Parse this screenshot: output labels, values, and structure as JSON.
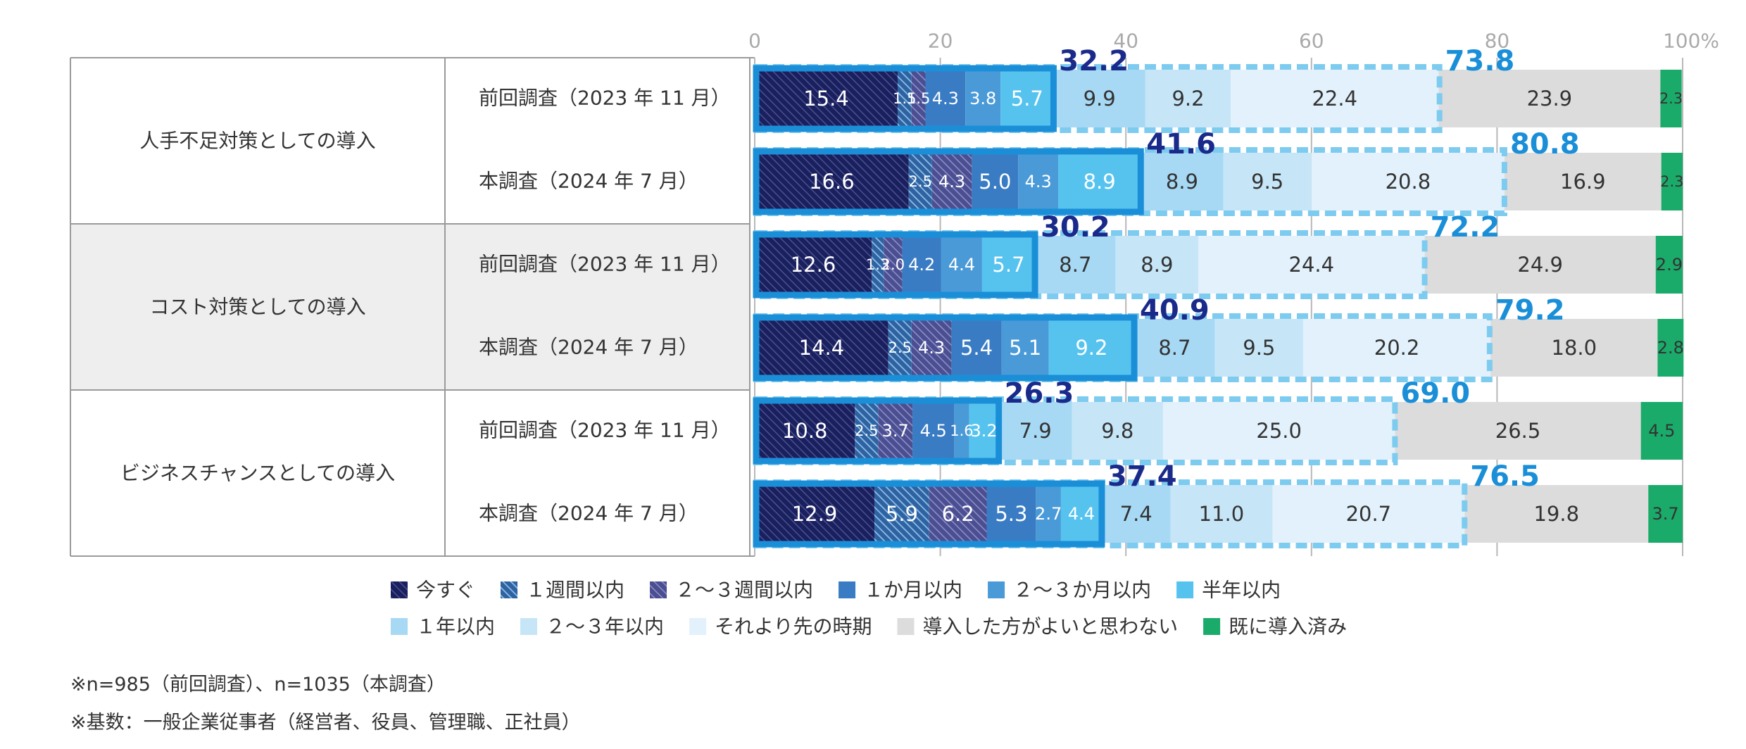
{
  "chart_data": {
    "type": "bar",
    "orientation": "horizontal",
    "stacked": true,
    "xlim": [
      0,
      100
    ],
    "x_ticks": [
      "0",
      "20",
      "40",
      "60",
      "80",
      "100%"
    ],
    "grid": true,
    "legend_position": "bottom",
    "groups": [
      {
        "label": "人手不足対策としての導入",
        "rows": [
          {
            "label": "前回調査（2023 年 11 月）",
            "values": [
              "15.4",
              "1.5",
              "1.5",
              "4.3",
              "3.8",
              "5.7",
              "9.9",
              "9.2",
              "22.4",
              "23.9",
              "2.3"
            ],
            "within_half_year": "32.2",
            "cumulative": "73.8"
          },
          {
            "label": "本調査（2024 年 7 月）",
            "values": [
              "16.6",
              "2.5",
              "4.3",
              "5.0",
              "4.3",
              "8.9",
              "8.9",
              "9.5",
              "20.8",
              "16.9",
              "2.3"
            ],
            "within_half_year": "41.6",
            "cumulative": "80.8"
          }
        ]
      },
      {
        "label": "コスト対策としての導入",
        "rows": [
          {
            "label": "前回調査（2023 年 11 月）",
            "values": [
              "12.6",
              "1.3",
              "2.0",
              "4.2",
              "4.4",
              "5.7",
              "8.7",
              "8.9",
              "24.4",
              "24.9",
              "2.9"
            ],
            "within_half_year": "30.2",
            "cumulative": "72.2"
          },
          {
            "label": "本調査（2024 年 7 月）",
            "values": [
              "14.4",
              "2.5",
              "4.3",
              "5.4",
              "5.1",
              "9.2",
              "8.7",
              "9.5",
              "20.2",
              "18.0",
              "2.8"
            ],
            "within_half_year": "40.9",
            "cumulative": "79.2"
          }
        ]
      },
      {
        "label": "ビジネスチャンスとしての導入",
        "rows": [
          {
            "label": "前回調査（2023 年 11 月）",
            "values": [
              "10.8",
              "2.5",
              "3.7",
              "4.5",
              "1.6",
              "3.2",
              "7.9",
              "9.8",
              "25.0",
              "26.5",
              "4.5"
            ],
            "within_half_year": "26.3",
            "cumulative": "69.0"
          },
          {
            "label": "本調査（2024 年 7 月）",
            "values": [
              "12.9",
              "5.9",
              "6.2",
              "5.3",
              "2.7",
              "4.4",
              "7.4",
              "11.0",
              "20.7",
              "19.8",
              "3.7"
            ],
            "within_half_year": "37.4",
            "cumulative": "76.5"
          }
        ]
      }
    ],
    "series": [
      {
        "name": "今すぐ",
        "color": "#1a1f5e",
        "pattern": "hatch-dark",
        "label_color": "#ffffff"
      },
      {
        "name": "１週間以内",
        "color": "#5a8fc4",
        "pattern": "hatch-light",
        "label_color": "#ffffff"
      },
      {
        "name": "２～３週間以内",
        "color": "#5b5fa0",
        "pattern": "hatch-mid",
        "label_color": "#ffffff"
      },
      {
        "name": "１か月以内",
        "color": "#3a7cc4",
        "pattern": "none",
        "label_color": "#ffffff"
      },
      {
        "name": "２～３か月以内",
        "color": "#4a9ad8",
        "pattern": "none",
        "label_color": "#ffffff"
      },
      {
        "name": "半年以内",
        "color": "#56c3ef",
        "pattern": "none",
        "label_color": "#ffffff"
      },
      {
        "name": "１年以内",
        "color": "#a7d9f5",
        "pattern": "none",
        "label_color": "#333333"
      },
      {
        "name": "２～３年以内",
        "color": "#c6e6f8",
        "pattern": "none",
        "label_color": "#333333"
      },
      {
        "name": "それより先の時期",
        "color": "#e2f1fb",
        "pattern": "none",
        "label_color": "#333333"
      },
      {
        "name": "導入した方がよいと思わない",
        "color": "#dcdcdc",
        "pattern": "none",
        "label_color": "#333333"
      },
      {
        "name": "既に導入済み",
        "color": "#1aab6a",
        "pattern": "none",
        "label_color": "#333333"
      }
    ],
    "within_half_year_color": "#1a2a8a",
    "cumulative_color": "#1a8fd8",
    "highlight_frame_color": "#1a8fd8",
    "dashed_frame_color": "#7ecbf0"
  },
  "notes": [
    "※n=985（前回調査）、n=1035（本調査）",
    "※基数：一般企業従事者（経営者、役員、管理職、正社員）"
  ]
}
